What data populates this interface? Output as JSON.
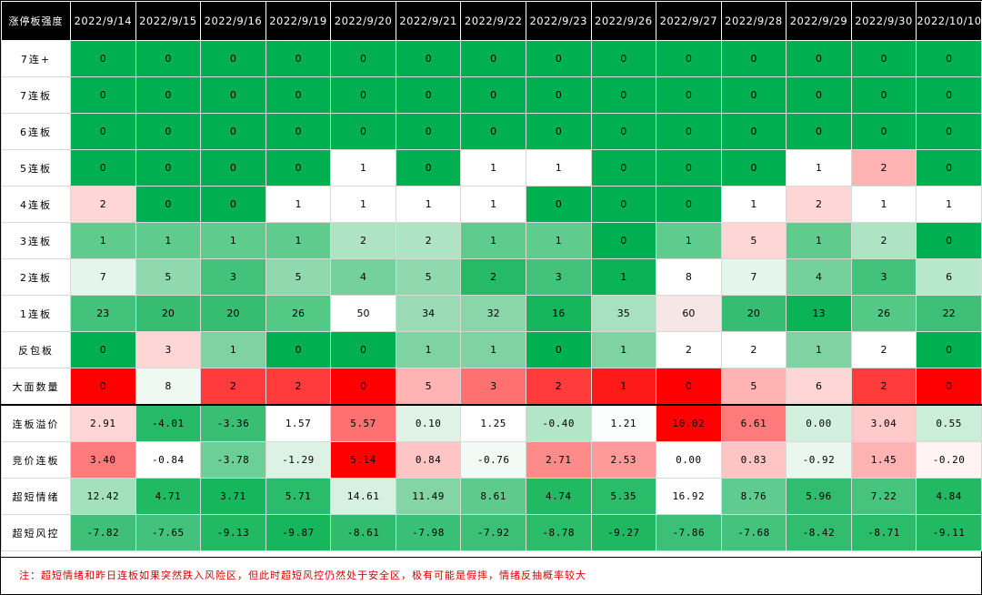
{
  "header": {
    "corner_label": "涨停板强度",
    "dates": [
      "2022/9/14",
      "2022/9/15",
      "2022/9/16",
      "2022/9/19",
      "2022/9/20",
      "2022/9/21",
      "2022/9/22",
      "2022/9/23",
      "2022/9/26",
      "2022/9/27",
      "2022/9/28",
      "2022/9/29",
      "2022/9/30",
      "2022/10/10"
    ]
  },
  "rows": [
    {
      "label": "7连+",
      "values": [
        "0",
        "0",
        "0",
        "0",
        "0",
        "0",
        "0",
        "0",
        "0",
        "0",
        "0",
        "0",
        "0",
        "0"
      ]
    },
    {
      "label": "7连板",
      "values": [
        "0",
        "0",
        "0",
        "0",
        "0",
        "0",
        "0",
        "0",
        "0",
        "0",
        "0",
        "0",
        "0",
        "0"
      ]
    },
    {
      "label": "6连板",
      "values": [
        "0",
        "0",
        "0",
        "0",
        "0",
        "0",
        "0",
        "0",
        "0",
        "0",
        "0",
        "0",
        "0",
        "0"
      ]
    },
    {
      "label": "5连板",
      "values": [
        "0",
        "0",
        "0",
        "0",
        "1",
        "0",
        "1",
        "1",
        "0",
        "0",
        "0",
        "1",
        "2",
        "0"
      ]
    },
    {
      "label": "4连板",
      "values": [
        "2",
        "0",
        "0",
        "1",
        "1",
        "1",
        "1",
        "0",
        "0",
        "0",
        "1",
        "2",
        "1",
        "1"
      ]
    },
    {
      "label": "3连板",
      "values": [
        "1",
        "1",
        "1",
        "1",
        "2",
        "2",
        "1",
        "1",
        "0",
        "1",
        "5",
        "1",
        "2",
        "0"
      ]
    },
    {
      "label": "2连板",
      "values": [
        "7",
        "5",
        "3",
        "5",
        "4",
        "5",
        "2",
        "3",
        "1",
        "8",
        "7",
        "4",
        "3",
        "6"
      ]
    },
    {
      "label": "1连板",
      "values": [
        "23",
        "20",
        "20",
        "26",
        "50",
        "34",
        "32",
        "16",
        "35",
        "60",
        "20",
        "13",
        "26",
        "22"
      ]
    },
    {
      "label": "反包板",
      "values": [
        "0",
        "3",
        "1",
        "0",
        "0",
        "1",
        "1",
        "0",
        "1",
        "2",
        "2",
        "1",
        "2",
        "0"
      ]
    },
    {
      "label": "大面数量",
      "values": [
        "0",
        "8",
        "2",
        "2",
        "0",
        "5",
        "3",
        "2",
        "1",
        "0",
        "5",
        "6",
        "2",
        "0"
      ]
    },
    {
      "label": "连板溢价",
      "values": [
        "2.91",
        "-4.01",
        "-3.36",
        "1.57",
        "5.57",
        "0.10",
        "1.25",
        "-0.40",
        "1.21",
        "10.02",
        "6.61",
        "0.00",
        "3.04",
        "0.55"
      ]
    },
    {
      "label": "竞价连板",
      "values": [
        "3.40",
        "-0.84",
        "-3.78",
        "-1.29",
        "5.14",
        "0.84",
        "-0.76",
        "2.71",
        "2.53",
        "0.00",
        "0.83",
        "-0.92",
        "1.45",
        "-0.20"
      ]
    },
    {
      "label": "超短情绪",
      "values": [
        "12.42",
        "4.71",
        "3.71",
        "5.71",
        "14.61",
        "11.49",
        "8.61",
        "4.74",
        "5.35",
        "16.92",
        "8.76",
        "5.96",
        "7.22",
        "4.84"
      ]
    },
    {
      "label": "超短风控",
      "values": [
        "-7.82",
        "-7.65",
        "-9.13",
        "-9.87",
        "-8.61",
        "-7.98",
        "-7.92",
        "-8.78",
        "-9.27",
        "-7.86",
        "-7.68",
        "-8.42",
        "-8.71",
        "-9.11"
      ]
    }
  ],
  "colors": [
    [
      "#00b050",
      "#00b050",
      "#00b050",
      "#00b050",
      "#00b050",
      "#00b050",
      "#00b050",
      "#00b050",
      "#00b050",
      "#00b050",
      "#00b050",
      "#00b050",
      "#00b050",
      "#00b050"
    ],
    [
      "#00b050",
      "#00b050",
      "#00b050",
      "#00b050",
      "#00b050",
      "#00b050",
      "#00b050",
      "#00b050",
      "#00b050",
      "#00b050",
      "#00b050",
      "#00b050",
      "#00b050",
      "#00b050"
    ],
    [
      "#00b050",
      "#00b050",
      "#00b050",
      "#00b050",
      "#00b050",
      "#00b050",
      "#00b050",
      "#00b050",
      "#00b050",
      "#00b050",
      "#00b050",
      "#00b050",
      "#00b050",
      "#00b050"
    ],
    [
      "#00b050",
      "#00b050",
      "#00b050",
      "#00b050",
      "#ffffff",
      "#00b050",
      "#ffffff",
      "#ffffff",
      "#00b050",
      "#00b050",
      "#00b050",
      "#ffffff",
      "#ffb3b3",
      "#00b050"
    ],
    [
      "#ffd6d6",
      "#00b050",
      "#00b050",
      "#ffffff",
      "#ffffff",
      "#ffffff",
      "#ffffff",
      "#00b050",
      "#00b050",
      "#00b050",
      "#ffffff",
      "#ffd6d6",
      "#ffffff",
      "#ffffff"
    ],
    [
      "#5fcc8e",
      "#5fcc8e",
      "#5fcc8e",
      "#5fcc8e",
      "#aee3c4",
      "#aee3c4",
      "#5fcc8e",
      "#5fcc8e",
      "#00b050",
      "#5fcc8e",
      "#ffd6d6",
      "#5fcc8e",
      "#aee3c4",
      "#00b050"
    ],
    [
      "#e4f5eb",
      "#90d9ae",
      "#43c27b",
      "#90d9ae",
      "#74d19b",
      "#90d9ae",
      "#27ba66",
      "#43c27b",
      "#09b356",
      "#ffffff",
      "#e4f5eb",
      "#74d19b",
      "#43c27b",
      "#b8e8cc"
    ],
    [
      "#43c27b",
      "#36bd72",
      "#36bd72",
      "#54c885",
      "#ffffff",
      "#9bdcb6",
      "#8ad6aa",
      "#16b65d",
      "#a8e1c0",
      "#f7e6e6",
      "#36bd72",
      "#09b356",
      "#54c885",
      "#3ebf77"
    ],
    [
      "#00b050",
      "#ffd6d6",
      "#7fd3a2",
      "#00b050",
      "#00b050",
      "#7fd3a2",
      "#7fd3a2",
      "#00b050",
      "#7fd3a2",
      "#ffffff",
      "#ffffff",
      "#7fd3a2",
      "#ffffff",
      "#00b050"
    ],
    [
      "#ff0000",
      "#eef9f2",
      "#ff3b3b",
      "#ff3b3b",
      "#ff0000",
      "#ffb3b3",
      "#ff7070",
      "#ff3b3b",
      "#ff1a1a",
      "#ff0000",
      "#ffb3b3",
      "#ffd6d6",
      "#ff3b3b",
      "#ff0000"
    ],
    [
      "#ffd6d6",
      "#27ba66",
      "#39be74",
      "#ffffff",
      "#ff7070",
      "#dff3e7",
      "#ffffff",
      "#b3e5c7",
      "#fafdfb",
      "#ff0000",
      "#ff7a7a",
      "#d3f0df",
      "#ffcaca",
      "#cbeed9"
    ],
    [
      "#ff7a7a",
      "#ffffff",
      "#6ccf96",
      "#dcf2e5",
      "#ff0000",
      "#ffc4c4",
      "#f1faf4",
      "#ff8a8a",
      "#ff9a9a",
      "#ffffff",
      "#ffc4c4",
      "#e9f7ee",
      "#ffb3b3",
      "#fff3f3"
    ],
    [
      "#a3e0bc",
      "#21b962",
      "#16b65d",
      "#2bbc69",
      "#d6f1e1",
      "#84d5a6",
      "#5ecb8c",
      "#21b962",
      "#2bbc69",
      "#fdfefd",
      "#60cb8e",
      "#31bd6d",
      "#48c37e",
      "#21b962"
    ],
    [
      "#3fbf77",
      "#43c27b",
      "#22b963",
      "#16b65d",
      "#2fbd6d",
      "#3ac076",
      "#3cc078",
      "#2bbc69",
      "#1fb861",
      "#3cc078",
      "#45c37d",
      "#31bd6d",
      "#2bbc69",
      "#22b963"
    ]
  ],
  "note": "注：超短情绪和昨日连板如果突然跌入风险区，但此时超短风控仍然处于安全区，极有可能是假摔，情绪反抽概率较大"
}
